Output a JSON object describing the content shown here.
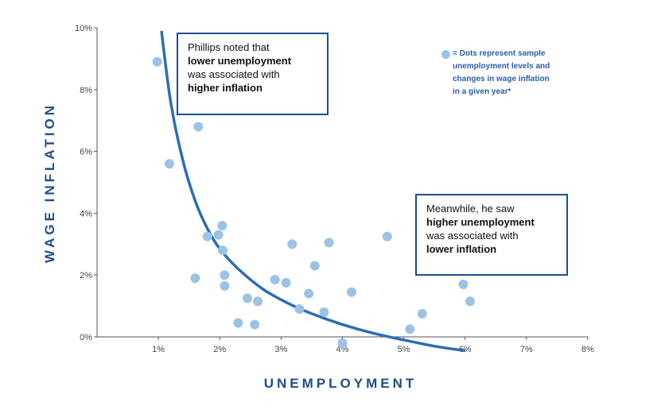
{
  "chart_data": {
    "type": "scatter",
    "xlabel": "UNEMPLOYMENT",
    "ylabel": "WAGE INFLATION",
    "xlim": [
      0,
      8
    ],
    "ylim": [
      0,
      10
    ],
    "x_ticks": [
      "1%",
      "2%",
      "3%",
      "4%",
      "5%",
      "6%",
      "7%",
      "8%"
    ],
    "y_ticks": [
      "0%",
      "2%",
      "4%",
      "6%",
      "8%",
      "10%"
    ],
    "grid": false,
    "points": [
      {
        "x": 0.98,
        "y": 8.9
      },
      {
        "x": 1.18,
        "y": 5.6
      },
      {
        "x": 1.65,
        "y": 6.8
      },
      {
        "x": 1.6,
        "y": 1.9
      },
      {
        "x": 1.8,
        "y": 3.25
      },
      {
        "x": 1.98,
        "y": 3.3
      },
      {
        "x": 2.04,
        "y": 3.6
      },
      {
        "x": 2.05,
        "y": 2.8
      },
      {
        "x": 2.08,
        "y": 2.0
      },
      {
        "x": 2.08,
        "y": 1.65
      },
      {
        "x": 2.3,
        "y": 0.45
      },
      {
        "x": 2.45,
        "y": 1.25
      },
      {
        "x": 2.57,
        "y": 0.4
      },
      {
        "x": 2.62,
        "y": 1.15
      },
      {
        "x": 2.9,
        "y": 1.85
      },
      {
        "x": 3.08,
        "y": 1.75
      },
      {
        "x": 3.18,
        "y": 3.0
      },
      {
        "x": 3.3,
        "y": 0.9
      },
      {
        "x": 3.45,
        "y": 1.4
      },
      {
        "x": 3.55,
        "y": 2.3
      },
      {
        "x": 3.7,
        "y": 0.8
      },
      {
        "x": 3.78,
        "y": 3.05
      },
      {
        "x": 4.0,
        "y": -0.2
      },
      {
        "x": 4.15,
        "y": 1.45
      },
      {
        "x": 4.73,
        "y": 3.25
      },
      {
        "x": 5.1,
        "y": 0.25
      },
      {
        "x": 5.3,
        "y": 0.75
      },
      {
        "x": 5.97,
        "y": 1.7
      },
      {
        "x": 6.08,
        "y": 1.15
      }
    ],
    "curve": [
      {
        "x": 1.05,
        "y": 9.9
      },
      {
        "x": 1.2,
        "y": 7.6
      },
      {
        "x": 1.4,
        "y": 5.7
      },
      {
        "x": 1.6,
        "y": 4.4
      },
      {
        "x": 1.8,
        "y": 3.5
      },
      {
        "x": 2.0,
        "y": 2.85
      },
      {
        "x": 2.3,
        "y": 2.2
      },
      {
        "x": 2.7,
        "y": 1.55
      },
      {
        "x": 3.1,
        "y": 1.1
      },
      {
        "x": 3.5,
        "y": 0.75
      },
      {
        "x": 4.0,
        "y": 0.4
      },
      {
        "x": 4.5,
        "y": 0.12
      },
      {
        "x": 5.0,
        "y": -0.1
      },
      {
        "x": 5.5,
        "y": -0.3
      },
      {
        "x": 6.0,
        "y": -0.45
      }
    ],
    "annotations": {
      "left_box": [
        [
          {
            "text": "Phillips noted that",
            "bold": false
          }
        ],
        [
          {
            "text": "lower unemployment",
            "bold": true
          }
        ],
        [
          {
            "text": "was associated with",
            "bold": false
          }
        ],
        [
          {
            "text": "higher inflation",
            "bold": true
          }
        ]
      ],
      "right_box": [
        [
          {
            "text": "Meanwhile, he saw",
            "bold": false
          }
        ],
        [
          {
            "text": "higher unemployment",
            "bold": true
          }
        ],
        [
          {
            "text": "was associated with",
            "bold": false
          }
        ],
        [
          {
            "text": "lower inflation",
            "bold": true
          }
        ]
      ]
    },
    "legend": {
      "position": "top-right",
      "lines": [
        "= Dots represent sample",
        "unemployment levels and",
        "changes in wage inflation",
        "in a given year*"
      ]
    },
    "colors": {
      "points": "#9cc3e6",
      "curve": "#2a6db5",
      "axis_title": "#1f4e8c",
      "box_border": "#1f4e8c"
    }
  }
}
